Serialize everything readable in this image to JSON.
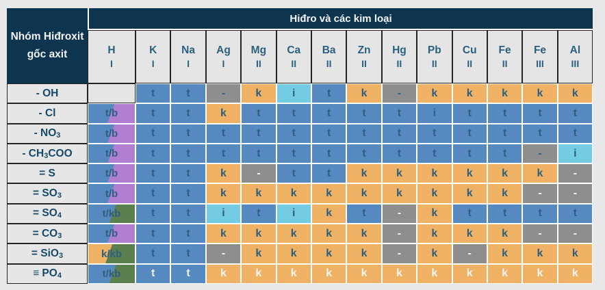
{
  "table": {
    "corner_title": "Nhóm Hiđroxit gốc axit",
    "group_header": "Hiđro và các kim loại",
    "columns": [
      {
        "symbol": "H",
        "valence": "I"
      },
      {
        "symbol": "K",
        "valence": "I"
      },
      {
        "symbol": "Na",
        "valence": "I"
      },
      {
        "symbol": "Ag",
        "valence": "I"
      },
      {
        "symbol": "Mg",
        "valence": "II"
      },
      {
        "symbol": "Ca",
        "valence": "II"
      },
      {
        "symbol": "Ba",
        "valence": "II"
      },
      {
        "symbol": "Zn",
        "valence": "II"
      },
      {
        "symbol": "Hg",
        "valence": "II"
      },
      {
        "symbol": "Pb",
        "valence": "II"
      },
      {
        "symbol": "Cu",
        "valence": "II"
      },
      {
        "symbol": "Fe",
        "valence": "II"
      },
      {
        "symbol": "Fe",
        "valence": "III"
      },
      {
        "symbol": "Al",
        "valence": "III"
      }
    ],
    "rows": [
      {
        "label": [
          "- OH"
        ],
        "cells": [
          "",
          "t",
          "t",
          "-",
          "k",
          "i",
          "t",
          "k",
          "-",
          "k",
          "k",
          "k",
          "k",
          "k"
        ]
      },
      {
        "label": [
          "- Cl"
        ],
        "cells": [
          "t/b",
          "t",
          "t",
          "k",
          "t",
          "t",
          "t",
          "t",
          "t",
          "i|b",
          "t",
          "t",
          "t",
          "t"
        ]
      },
      {
        "label": [
          "- NO",
          "3"
        ],
        "cells": [
          "t/b",
          "t",
          "t",
          "t",
          "t",
          "t",
          "t",
          "t",
          "t",
          "t",
          "t",
          "t",
          "t",
          "t"
        ]
      },
      {
        "label": [
          "- CH",
          "3",
          "COO"
        ],
        "cells": [
          "t/b",
          "t",
          "t",
          "t",
          "t",
          "t",
          "t",
          "t",
          "t",
          "t",
          "t",
          "t",
          "-",
          "i"
        ]
      },
      {
        "label": [
          "= S"
        ],
        "cells": [
          "t/b",
          "t",
          "t",
          "k",
          "-|w",
          "t",
          "t",
          "k",
          "k",
          "k",
          "k",
          "k",
          "k",
          "-|w"
        ]
      },
      {
        "label": [
          "= SO",
          "3"
        ],
        "cells": [
          "t/b",
          "t",
          "t",
          "k",
          "k",
          "k",
          "k",
          "k",
          "k",
          "k",
          "k",
          "k",
          "-|w",
          "-|w"
        ]
      },
      {
        "label": [
          "= SO",
          "4"
        ],
        "cells": [
          "t/kb",
          "t",
          "t",
          "i",
          "t",
          "i",
          "k",
          "t",
          "-|w",
          "k",
          "t",
          "t",
          "t",
          "t"
        ]
      },
      {
        "label": [
          "= CO",
          "3"
        ],
        "cells": [
          "t/b",
          "t",
          "t",
          "k",
          "k",
          "k",
          "k",
          "k",
          "-|w",
          "k",
          "k",
          "k",
          "-|w",
          "-|w"
        ]
      },
      {
        "label": [
          "= SiO",
          "3"
        ],
        "cells": [
          "k/kb",
          "t",
          "t",
          "-|w",
          "k",
          "k",
          "k",
          "k",
          "-|w",
          "k",
          "-|w",
          "k",
          "k",
          "k"
        ]
      },
      {
        "label": [
          "≡ PO",
          "4"
        ],
        "cells": [
          "t/kb",
          "t|w",
          "t|w",
          "k|w",
          "k|w",
          "k|w",
          "k|w",
          "k|w",
          "k|w",
          "k|w",
          "k|w",
          "k|w",
          "k|w",
          "k|w"
        ]
      }
    ]
  },
  "colors": {
    "navy": "#0e3550",
    "blue": "#5589bf",
    "orange": "#efb163",
    "cyan": "#74cce4",
    "gray": "#8e8e8e",
    "purple": "#b17fd2",
    "green": "#5b7f4f",
    "header_bg": "#e5e5e6",
    "label_bg": "#e6e6e6",
    "cell_text": "#2e5f7e",
    "header_text": "#2a607f",
    "label_text": "#16486a",
    "page_bg": "#e8e8e8"
  }
}
